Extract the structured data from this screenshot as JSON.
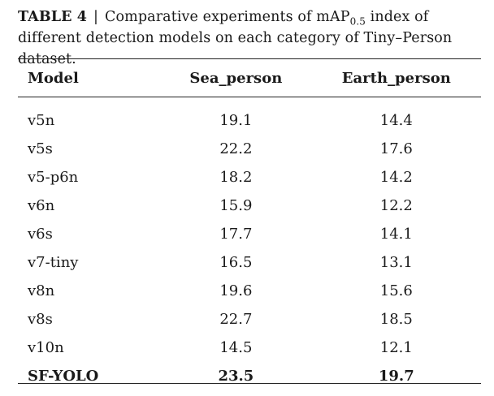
{
  "caption": {
    "label": "TABLE 4",
    "separator": "|",
    "text_before_sub": "Comparative experiments of mAP",
    "subscript": "0.5",
    "text_after_sub": " index of different detection models on each category of Tiny–Person dataset."
  },
  "table": {
    "headers": [
      "Model",
      "Sea_person",
      "Earth_person"
    ],
    "rows": [
      {
        "model": "v5n",
        "sea": "19.1",
        "earth": "14.4"
      },
      {
        "model": "v5s",
        "sea": "22.2",
        "earth": "17.6"
      },
      {
        "model": "v5-p6n",
        "sea": "18.2",
        "earth": "14.2"
      },
      {
        "model": "v6n",
        "sea": "15.9",
        "earth": "12.2"
      },
      {
        "model": "v6s",
        "sea": "17.7",
        "earth": "14.1"
      },
      {
        "model": "v7-tiny",
        "sea": "16.5",
        "earth": "13.1"
      },
      {
        "model": "v8n",
        "sea": "19.6",
        "earth": "15.6"
      },
      {
        "model": "v8s",
        "sea": "22.7",
        "earth": "18.5"
      },
      {
        "model": "v10n",
        "sea": "14.5",
        "earth": "12.1"
      },
      {
        "model": "SF-YOLO",
        "sea": "23.5",
        "earth": "19.7",
        "bold": true
      }
    ]
  }
}
